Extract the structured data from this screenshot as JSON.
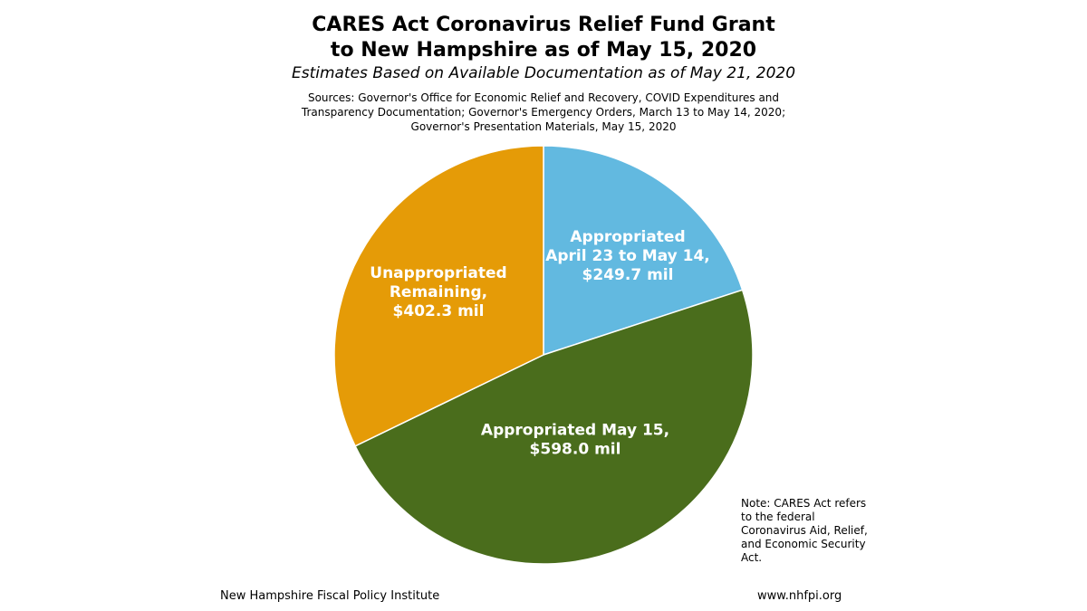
{
  "chart_data": {
    "type": "pie",
    "title": "CARES Act Coronavirus Relief Fund Grant to New Hampshire as of May 15, 2020",
    "title_lines": [
      "CARES Act Coronavirus Relief Fund Grant",
      "to New Hampshire as of May 15, 2020"
    ],
    "subtitle": "Estimates Based on Available Documentation as of May 21, 2020",
    "sources_lines": [
      "Sources: Governor's Office for Economic Relief and Recovery, COVID Expenditures and",
      "Transparency Documentation; Governor's Emergency Orders, March 13 to May 14, 2020;",
      "Governor's Presentation Materials, May 15, 2020"
    ],
    "unit": "mil",
    "slices": [
      {
        "label_lines": [
          "Appropriated",
          "April 23 to May 14,",
          "$249.7 mil"
        ],
        "value": 249.7,
        "color": "#62B9E0"
      },
      {
        "label_lines": [
          "Appropriated May 15,",
          "$598.0 mil"
        ],
        "value": 598.0,
        "color": "#4A6D1C"
      },
      {
        "label_lines": [
          "Unappropriated",
          "Remaining,",
          "$402.3 mil"
        ],
        "value": 402.3,
        "color": "#E59B07"
      }
    ],
    "legend": "none",
    "note": "Note: CARES Act refers to the federal Coronavirus Aid, Relief, and Economic Security Act.",
    "footer_left": "New Hampshire Fiscal Policy Institute",
    "footer_right": "www.nhfpi.org"
  }
}
